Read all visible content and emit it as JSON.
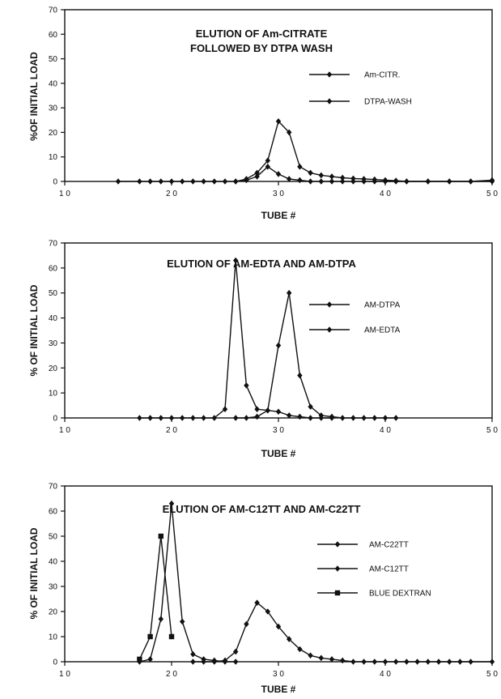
{
  "chart_data": [
    {
      "type": "line",
      "title": [
        "ELUTION OF Am-CITRATE",
        "FOLLOWED BY DTPA WASH"
      ],
      "xlabel": "TUBE #",
      "ylabel": "%OF INITIAL LOAD",
      "xlim": [
        10,
        50
      ],
      "ylim": [
        0,
        70
      ],
      "xticks": [
        10,
        20,
        30,
        40,
        50
      ],
      "xtick_labels": [
        "1 0",
        "2 0",
        "3 0",
        "4 0",
        "5 0"
      ],
      "yticks": [
        0,
        10,
        20,
        30,
        40,
        50,
        60,
        70
      ],
      "legend_position": "right",
      "series": [
        {
          "name": "Am-CITR.",
          "marker": "diamond",
          "x": [
            15,
            17,
            18,
            19,
            20,
            21,
            22,
            23,
            24,
            25,
            26,
            27,
            28,
            29,
            30,
            31,
            32,
            33,
            34,
            35,
            36,
            37,
            38,
            39,
            40,
            41,
            42,
            44,
            46,
            48,
            50
          ],
          "values": [
            0,
            0,
            0,
            0,
            0,
            0,
            0,
            0,
            0,
            0,
            0,
            0.5,
            2,
            6,
            3,
            1,
            0.5,
            0,
            0,
            0,
            0,
            0,
            0,
            0,
            0,
            0,
            0,
            0,
            0,
            0,
            0
          ]
        },
        {
          "name": "DTPA-WASH",
          "marker": "diamond",
          "x": [
            26,
            27,
            28,
            29,
            30,
            31,
            32,
            33,
            34,
            35,
            36,
            37,
            38,
            39,
            40,
            41,
            42,
            44,
            46,
            48,
            50
          ],
          "values": [
            0,
            1,
            3.5,
            8.5,
            24.5,
            20,
            6,
            3.5,
            2.5,
            2,
            1.5,
            1.2,
            1,
            0.8,
            0.5,
            0.3,
            0,
            0,
            0,
            0,
            0.5
          ]
        }
      ]
    },
    {
      "type": "line",
      "title": [
        "ELUTION OF AM-EDTA AND AM-DTPA"
      ],
      "xlabel": "TUBE #",
      "ylabel": "% OF INITIAL LOAD",
      "xlim": [
        10,
        50
      ],
      "ylim": [
        0,
        70
      ],
      "xticks": [
        10,
        20,
        30,
        40,
        50
      ],
      "xtick_labels": [
        "1 0",
        "2 0",
        "3 0",
        "4 0",
        "5 0"
      ],
      "yticks": [
        0,
        10,
        20,
        30,
        40,
        50,
        60,
        70
      ],
      "legend_position": "right",
      "series": [
        {
          "name": "AM-DTPA",
          "marker": "diamond",
          "x": [
            26,
            27,
            28,
            29,
            30,
            31,
            32,
            33,
            34,
            35,
            36,
            37,
            38,
            39,
            40,
            41
          ],
          "values": [
            0,
            0,
            0.5,
            3,
            29,
            50,
            17,
            4.5,
            1,
            0.5,
            0,
            0,
            0,
            0,
            0,
            0
          ]
        },
        {
          "name": "AM-EDTA",
          "marker": "diamond",
          "x": [
            17,
            18,
            19,
            20,
            21,
            22,
            23,
            24,
            25,
            26,
            27,
            28,
            29,
            30,
            31,
            32,
            33,
            34,
            35
          ],
          "values": [
            0,
            0,
            0,
            0,
            0,
            0,
            0,
            0,
            3.5,
            63,
            13,
            3.5,
            3,
            2.5,
            1,
            0.5,
            0,
            0,
            0
          ]
        }
      ]
    },
    {
      "type": "line",
      "title": [
        "ELUTION OF AM-C12TT AND AM-C22TT"
      ],
      "xlabel": "TUBE #",
      "ylabel": "% OF INITIAL LOAD",
      "xlim": [
        10,
        50
      ],
      "ylim": [
        0,
        70
      ],
      "xticks": [
        10,
        20,
        30,
        40,
        50
      ],
      "xtick_labels": [
        "1 0",
        "2 0",
        "3 0",
        "4 0",
        "5 0"
      ],
      "yticks": [
        0,
        10,
        20,
        30,
        40,
        50,
        60,
        70
      ],
      "legend_position": "right",
      "series": [
        {
          "name": "AM-C22TT",
          "marker": "diamond",
          "x": [
            22,
            23,
            24,
            25,
            26,
            27,
            28,
            29,
            30,
            31,
            32,
            33,
            34,
            35,
            36,
            37,
            38,
            39,
            40,
            41,
            42,
            43,
            44,
            45,
            46,
            47,
            48,
            50
          ],
          "values": [
            0,
            0,
            0,
            0.5,
            4,
            15,
            23.5,
            20,
            14,
            9,
            5,
            2.5,
            1.5,
            1,
            0.5,
            0,
            0,
            0,
            0,
            0,
            0,
            0,
            0,
            0,
            0,
            0,
            0,
            0
          ]
        },
        {
          "name": "AM-C12TT",
          "marker": "diamond",
          "x": [
            17,
            18,
            19,
            20,
            21,
            22,
            23,
            24,
            25,
            26
          ],
          "values": [
            0,
            1,
            17,
            63,
            16,
            3,
            1,
            0.5,
            0,
            0
          ]
        },
        {
          "name": "BLUE DEXTRAN",
          "marker": "square",
          "x": [
            17,
            18,
            19,
            20
          ],
          "values": [
            1,
            10,
            50,
            10
          ]
        }
      ]
    }
  ]
}
